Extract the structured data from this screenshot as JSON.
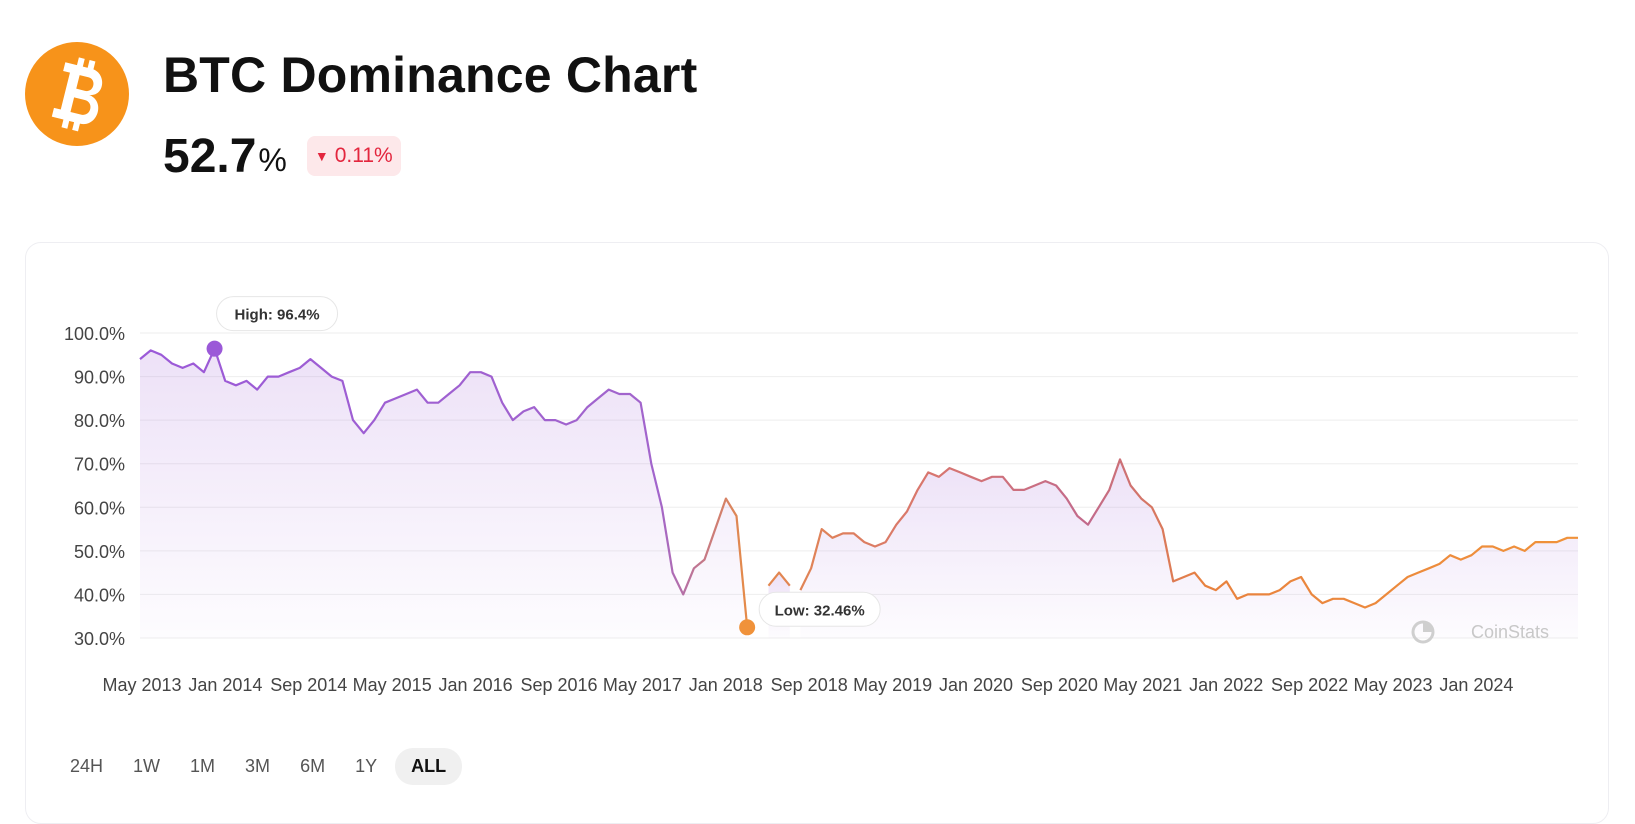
{
  "header": {
    "title": "BTC Dominance Chart",
    "value": "52.7",
    "unit": "%",
    "change": "0.11%",
    "change_direction": "down",
    "logo_icon": "bitcoin-logo-icon",
    "colors": {
      "logo": "#f7931a",
      "down": "#e3263e",
      "down_bg": "#fde8ea"
    }
  },
  "watermark": "CoinStats",
  "ranges": [
    {
      "label": "24H",
      "active": false
    },
    {
      "label": "1W",
      "active": false
    },
    {
      "label": "1M",
      "active": false
    },
    {
      "label": "3M",
      "active": false
    },
    {
      "label": "6M",
      "active": false
    },
    {
      "label": "1Y",
      "active": false
    },
    {
      "label": "ALL",
      "active": true
    }
  ],
  "chart_data": {
    "type": "area",
    "title": "",
    "xlabel": "",
    "ylabel": "",
    "ylim": [
      30,
      100
    ],
    "y_ticks": [
      "100.0%",
      "90.0%",
      "80.0%",
      "70.0%",
      "60.0%",
      "50.0%",
      "40.0%",
      "30.0%"
    ],
    "x_tick_labels": [
      "May 2013",
      "Jan 2014",
      "Sep 2014",
      "May 2015",
      "Jan 2016",
      "Sep 2016",
      "May 2017",
      "Jan 2018",
      "Sep 2018",
      "May 2019",
      "Jan 2020",
      "Sep 2020",
      "May 2021",
      "Jan 2022",
      "Sep 2022",
      "May 2023",
      "Jan 2024"
    ],
    "grid": true,
    "legend": "none",
    "colors": {
      "start": "#9b59d8",
      "end": "#f0923a"
    },
    "high": {
      "label": "High: 96.4%",
      "date": "2013-11",
      "value": 96.4
    },
    "low": {
      "label": "Low: 32.46%",
      "date": "2018-01",
      "value": 32.46
    },
    "series": [
      {
        "x": [
          "2013-04",
          "2013-05",
          "2013-06",
          "2013-07",
          "2013-08",
          "2013-09",
          "2013-10",
          "2013-11",
          "2013-12",
          "2014-01",
          "2014-02",
          "2014-03",
          "2014-04",
          "2014-05",
          "2014-06",
          "2014-07",
          "2014-08",
          "2014-09",
          "2014-10",
          "2014-11",
          "2014-12",
          "2015-01",
          "2015-02",
          "2015-03",
          "2015-04",
          "2015-05",
          "2015-06",
          "2015-07",
          "2015-08",
          "2015-09",
          "2015-10",
          "2015-11",
          "2015-12",
          "2016-01",
          "2016-02",
          "2016-03",
          "2016-04",
          "2016-05",
          "2016-06",
          "2016-07",
          "2016-08",
          "2016-09",
          "2016-10",
          "2016-11",
          "2016-12",
          "2017-01",
          "2017-02",
          "2017-03",
          "2017-04",
          "2017-05",
          "2017-06",
          "2017-07",
          "2017-08",
          "2017-09",
          "2017-10",
          "2017-11",
          "2017-12",
          "2018-01"
        ],
        "values": [
          94,
          96,
          95,
          93,
          92,
          93,
          91,
          96.4,
          89,
          88,
          89,
          87,
          90,
          90,
          91,
          92,
          94,
          92,
          90,
          89,
          80,
          77,
          80,
          84,
          85,
          86,
          87,
          84,
          84,
          86,
          88,
          91,
          91,
          90,
          84,
          80,
          82,
          83,
          80,
          80,
          79,
          80,
          83,
          85,
          87,
          86,
          86,
          84,
          70,
          60,
          45,
          40,
          46,
          48,
          55,
          62,
          58,
          32.46
        ]
      },
      {
        "x": [
          "2018-03",
          "2018-04",
          "2018-05"
        ],
        "values": [
          42,
          45,
          42
        ]
      },
      {
        "x": [
          "2018-06",
          "2018-07",
          "2018-08",
          "2018-09",
          "2018-10",
          "2018-11",
          "2018-12",
          "2019-01",
          "2019-02",
          "2019-03",
          "2019-04",
          "2019-05",
          "2019-06",
          "2019-07",
          "2019-08",
          "2019-09",
          "2019-10",
          "2019-11",
          "2019-12",
          "2020-01",
          "2020-02",
          "2020-03",
          "2020-04",
          "2020-05",
          "2020-06",
          "2020-07",
          "2020-08",
          "2020-09",
          "2020-10",
          "2020-11",
          "2020-12",
          "2021-01",
          "2021-02",
          "2021-03",
          "2021-04",
          "2021-05",
          "2021-06",
          "2021-07",
          "2021-08",
          "2021-09",
          "2021-10",
          "2021-11",
          "2021-12",
          "2022-01",
          "2022-02",
          "2022-03",
          "2022-04",
          "2022-05",
          "2022-06",
          "2022-07",
          "2022-08",
          "2022-09",
          "2022-10",
          "2022-11",
          "2022-12",
          "2023-01",
          "2023-02",
          "2023-03",
          "2023-04",
          "2023-05",
          "2023-06",
          "2023-07",
          "2023-08",
          "2023-09",
          "2023-10",
          "2023-11",
          "2023-12",
          "2024-01",
          "2024-02",
          "2024-03",
          "2024-04",
          "2024-05",
          "2024-06",
          "2024-07"
        ],
        "values": [
          41,
          46,
          55,
          53,
          54,
          54,
          52,
          51,
          52,
          56,
          59,
          64,
          68,
          67,
          69,
          68,
          67,
          66,
          67,
          67,
          64,
          64,
          65,
          66,
          65,
          62,
          58,
          56,
          60,
          64,
          71,
          65,
          62,
          60,
          55,
          43,
          44,
          45,
          42,
          41,
          43,
          39,
          40,
          40,
          40,
          41,
          43,
          44,
          40,
          38,
          39,
          39,
          38,
          37,
          38,
          40,
          42,
          44,
          45,
          46,
          47,
          49,
          48,
          49,
          51,
          51,
          50,
          51,
          50,
          52,
          52,
          52,
          53,
          53
        ]
      }
    ]
  }
}
